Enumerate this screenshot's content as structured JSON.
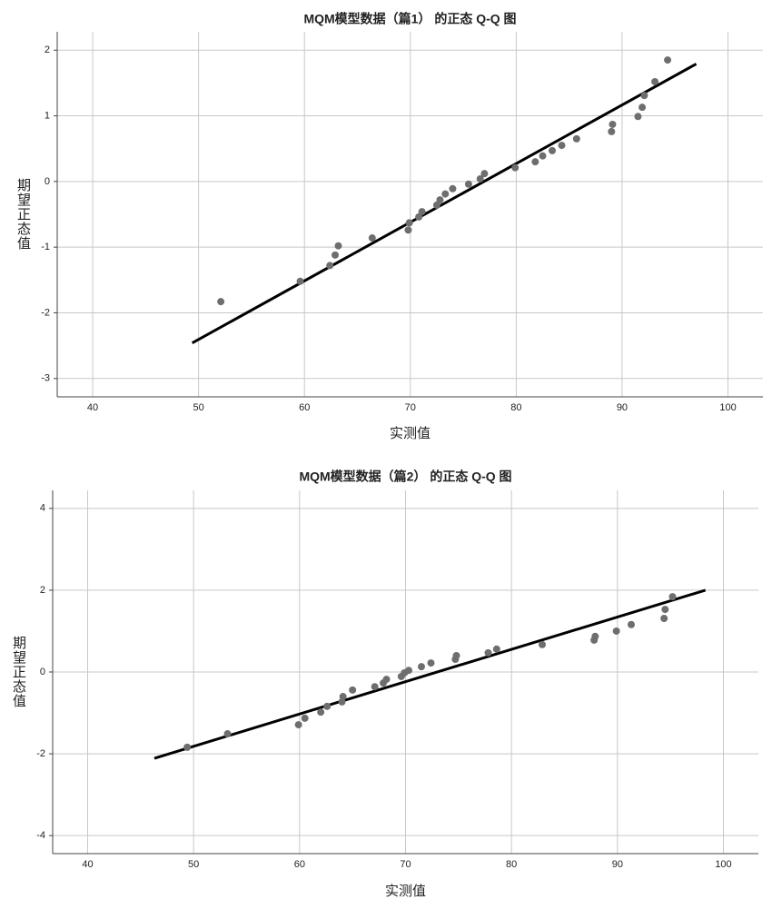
{
  "chart_data": [
    {
      "type": "scatter",
      "title": "MQM模型数据（篇1） 的正态 Q-Q 图",
      "x_label": "实测值",
      "y_label": "期望正态值",
      "xlim": [
        36.65,
        103.3
      ],
      "ylim": [
        -3.28,
        2.28
      ],
      "xticks": [
        40,
        50,
        60,
        70,
        80,
        90,
        100
      ],
      "yticks": [
        -3,
        -2,
        -1,
        0,
        1,
        2
      ],
      "grid": true,
      "color": "#6e6e6e",
      "line_color": "#000000",
      "x": [
        52.1,
        59.6,
        62.4,
        62.9,
        63.2,
        66.4,
        69.8,
        69.9,
        70.8,
        71.1,
        72.5,
        72.8,
        73.3,
        74.0,
        75.5,
        76.6,
        77.0,
        79.9,
        81.8,
        82.5,
        83.4,
        84.3,
        85.7,
        89.0,
        89.1,
        91.5,
        91.9,
        92.1,
        93.1,
        94.3
      ],
      "values": [
        -1.83,
        -1.52,
        -1.28,
        -1.12,
        -0.98,
        -0.86,
        -0.74,
        -0.63,
        -0.54,
        -0.46,
        -0.36,
        -0.28,
        -0.19,
        -0.11,
        -0.04,
        0.04,
        0.12,
        0.21,
        0.3,
        0.39,
        0.47,
        0.55,
        0.65,
        0.76,
        0.87,
        0.99,
        1.13,
        1.31,
        1.52,
        1.85
      ],
      "reference_line": {
        "x": [
          49.4,
          97.0
        ],
        "values": [
          -2.46,
          1.79
        ]
      }
    },
    {
      "type": "scatter",
      "title": "MQM模型数据（篇2） 的正态 Q-Q 图",
      "x_label": "实测值",
      "y_label": "期望正态值",
      "xlim": [
        36.7,
        103.3
      ],
      "ylim": [
        -4.44,
        4.44
      ],
      "xticks": [
        40,
        50,
        60,
        70,
        80,
        90,
        100
      ],
      "yticks": [
        -4,
        -2,
        0,
        2,
        4
      ],
      "grid": true,
      "color": "#6e6e6e",
      "line_color": "#000000",
      "x": [
        49.4,
        53.2,
        59.9,
        60.5,
        62.0,
        62.6,
        64.0,
        64.1,
        65.0,
        67.1,
        67.9,
        68.2,
        69.6,
        69.9,
        70.3,
        71.5,
        72.4,
        74.7,
        74.8,
        77.8,
        78.6,
        82.9,
        87.8,
        87.9,
        89.9,
        91.3,
        94.4,
        94.5,
        95.2
      ],
      "values": [
        -1.84,
        -1.51,
        -1.29,
        -1.13,
        -0.98,
        -0.84,
        -0.73,
        -0.6,
        -0.44,
        -0.36,
        -0.27,
        -0.18,
        -0.11,
        -0.02,
        0.04,
        0.13,
        0.22,
        0.31,
        0.4,
        0.47,
        0.56,
        0.67,
        0.78,
        0.87,
        1.0,
        1.16,
        1.31,
        1.53,
        1.84
      ],
      "reference_line": {
        "x": [
          46.3,
          98.3
        ],
        "values": [
          -2.11,
          2.0
        ]
      }
    }
  ]
}
